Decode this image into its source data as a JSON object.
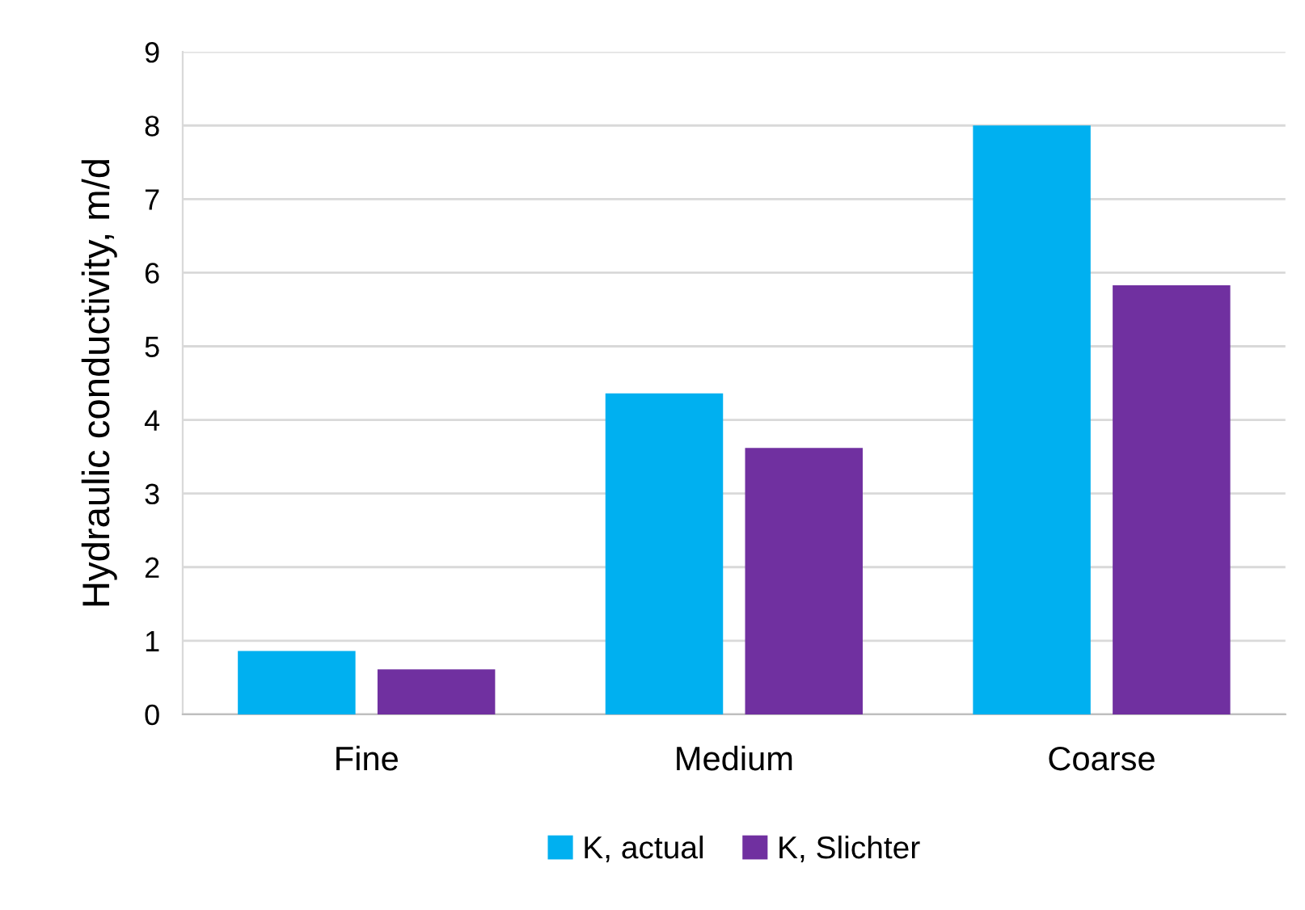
{
  "chart_data": {
    "type": "bar",
    "ylabel": "Hydraulic conductivity, m/d",
    "categories": [
      "Fine",
      "Medium",
      "Coarse"
    ],
    "series": [
      {
        "name": "K, actual",
        "color": "#00b0f0",
        "values": [
          0.86,
          4.36,
          8.0
        ]
      },
      {
        "name": "K, Slichter",
        "color": "#7030a0",
        "values": [
          0.61,
          3.62,
          5.83
        ]
      }
    ],
    "ylim": [
      0,
      9
    ],
    "yticks": [
      0,
      1,
      2,
      3,
      4,
      5,
      6,
      7,
      8,
      9
    ],
    "grid": "y",
    "legend": "bottom"
  }
}
